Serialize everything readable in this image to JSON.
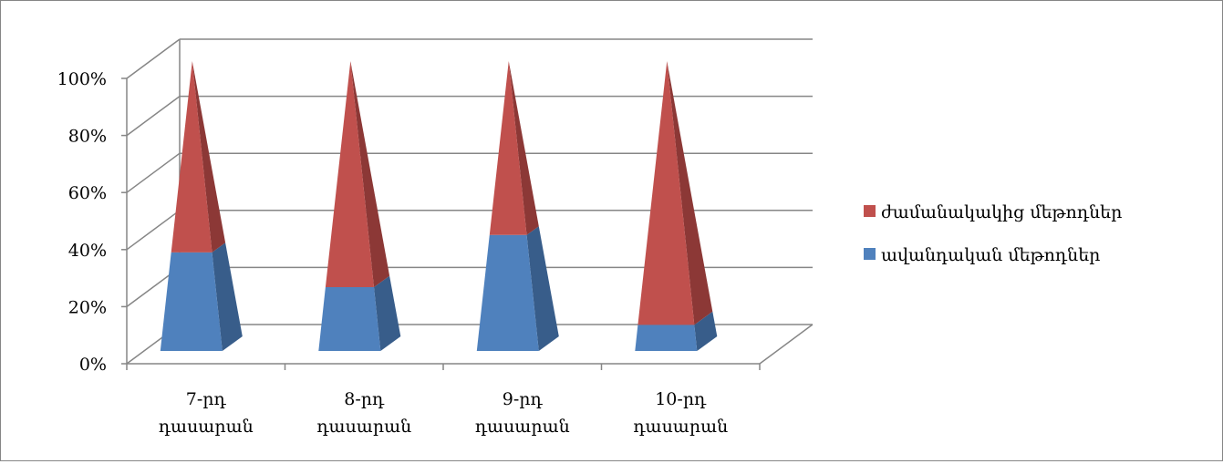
{
  "chart_data": {
    "type": "bar",
    "subtype": "3d-stacked-100-pyramid",
    "categories": [
      [
        "7-րդ",
        "դասարան"
      ],
      [
        "8-րդ",
        "դասարան"
      ],
      [
        "9-րդ",
        "դասարան"
      ],
      [
        "10-րդ",
        "դասարան"
      ]
    ],
    "series": [
      {
        "name": "ավանդական մեթոդներ",
        "values": [
          34,
          22,
          40,
          9
        ],
        "color": "#4F81BD",
        "side_color": "#385D8A"
      },
      {
        "name": "ժամանակակից մեթոդներ",
        "values": [
          66,
          78,
          60,
          91
        ],
        "color": "#C0504D",
        "side_color": "#8C3836"
      }
    ],
    "y_ticks": [
      "0%",
      "20%",
      "40%",
      "60%",
      "80%",
      "100%"
    ],
    "ylim": [
      0,
      100
    ],
    "grid": true,
    "legend_position": "right",
    "legend_order": [
      "ժամանակակից մեթոդներ",
      "ավանդական մեթոդներ"
    ]
  }
}
